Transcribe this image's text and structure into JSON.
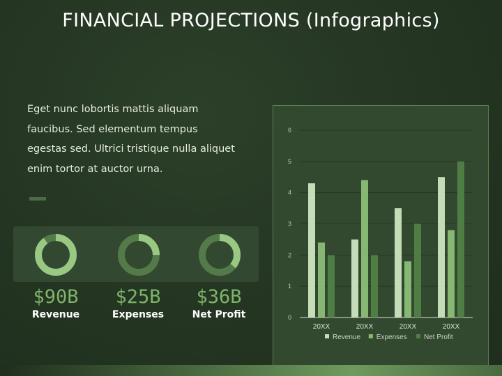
{
  "title": "FINANCIAL PROJECTIONS (Infographics)",
  "body_text": "Eget nunc lobortis mattis aliquam faucibus. Sed elementum tempus egestas sed. Ultrici tristique nulla aliquet enim tortor at auctor urna.",
  "kpis": [
    {
      "value": "$90B",
      "label": "Revenue",
      "fraction": 0.9
    },
    {
      "value": "$25B",
      "label": "Expenses",
      "fraction": 0.25
    },
    {
      "value": "$36B",
      "label": "Net Profit",
      "fraction": 0.36
    }
  ],
  "colors": {
    "revenue": "#c5dcb9",
    "expenses": "#86b874",
    "net_profit": "#4f7e45",
    "donut_track": "#557a4a",
    "donut_fill": "#98c882"
  },
  "chart_data": {
    "type": "bar",
    "categories": [
      "20XX",
      "20XX",
      "20XX",
      "20XX"
    ],
    "series": [
      {
        "name": "Revenue",
        "values": [
          4.3,
          2.5,
          3.5,
          4.5
        ]
      },
      {
        "name": "Expenses",
        "values": [
          2.4,
          4.4,
          1.8,
          2.8
        ]
      },
      {
        "name": "Net Profit",
        "values": [
          2.0,
          2.0,
          3.0,
          5.0
        ]
      }
    ],
    "ylim": [
      0,
      6
    ],
    "yticks": [
      "0",
      "1",
      "2",
      "3",
      "4",
      "5",
      "6"
    ],
    "grid": true,
    "legend": "bottom"
  }
}
